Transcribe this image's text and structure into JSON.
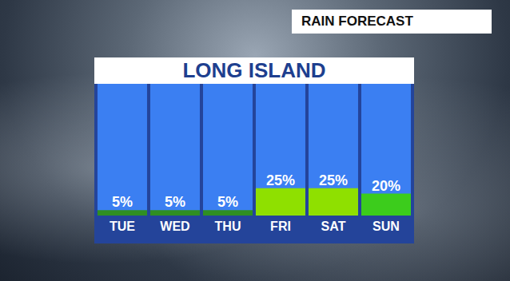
{
  "chart_data": {
    "type": "bar",
    "title": "LONG ISLAND",
    "subtitle": "RAIN FORECAST",
    "categories": [
      "TUE",
      "WED",
      "THU",
      "FRI",
      "SAT",
      "SUN"
    ],
    "values": [
      5,
      5,
      5,
      25,
      25,
      20
    ],
    "value_labels": [
      "5%",
      "5%",
      "5%",
      "25%",
      "25%",
      "20%"
    ],
    "colors": [
      "#2f8f22",
      "#2f8f22",
      "#2f8f22",
      "#8fe000",
      "#8fe000",
      "#3ccc1c"
    ],
    "ylim": [
      0,
      120
    ],
    "data_labels": true,
    "tick_labels": "x"
  }
}
